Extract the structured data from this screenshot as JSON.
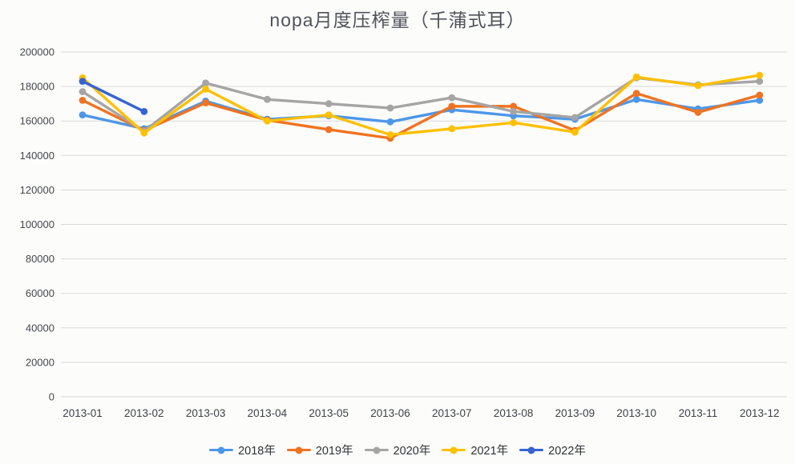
{
  "page": {
    "background": "#fcfcfb"
  },
  "chart_data": {
    "type": "line",
    "title": "nopa月度压榨量（千蒲式耳）",
    "categories": [
      "2013-01",
      "2013-02",
      "2013-03",
      "2013-04",
      "2013-05",
      "2013-06",
      "2013-07",
      "2013-08",
      "2013-09",
      "2013-10",
      "2013-11",
      "2013-12"
    ],
    "series": [
      {
        "name": "2018年",
        "color": "#4d97e8",
        "values": [
          163500,
          155500,
          171500,
          161000,
          163000,
          159500,
          166500,
          163000,
          161000,
          172500,
          167000,
          172000
        ]
      },
      {
        "name": "2019年",
        "color": "#f07320",
        "values": [
          172000,
          154500,
          170500,
          160500,
          155000,
          150000,
          168500,
          168500,
          154500,
          176000,
          165000,
          175000
        ]
      },
      {
        "name": "2020年",
        "color": "#a5a5a5",
        "values": [
          177000,
          154000,
          182000,
          172500,
          170000,
          167500,
          173500,
          165500,
          162000,
          185000,
          181000,
          183000
        ]
      },
      {
        "name": "2021年",
        "color": "#ffc000",
        "values": [
          185000,
          153000,
          178500,
          160000,
          163500,
          152000,
          155500,
          159000,
          153500,
          185500,
          180500,
          186500
        ]
      },
      {
        "name": "2022年",
        "color": "#3563d4",
        "values": [
          183000,
          165500,
          null,
          null,
          null,
          null,
          null,
          null,
          null,
          null,
          null,
          null
        ]
      }
    ],
    "ylim": [
      0,
      200000
    ],
    "yticks": [
      0,
      20000,
      40000,
      60000,
      80000,
      100000,
      120000,
      140000,
      160000,
      180000,
      200000
    ],
    "xlabel": "",
    "ylabel": "",
    "grid": true,
    "gridline_color": "#d9d9d9",
    "legend_position": "bottom",
    "marker": "circle"
  }
}
